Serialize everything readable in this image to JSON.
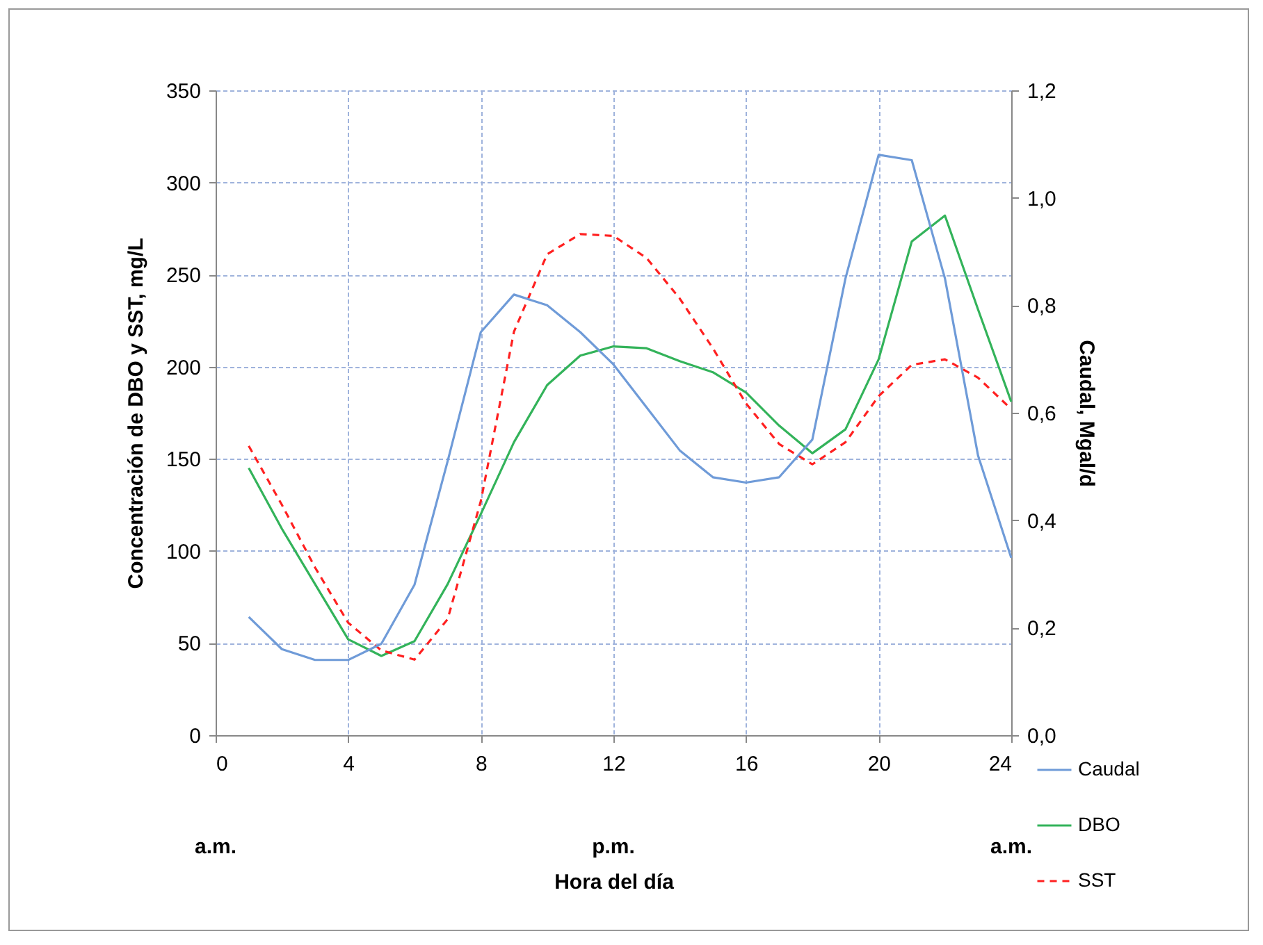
{
  "chart_data": {
    "type": "line",
    "xlabel": "Hora del día",
    "ylabel": "Concentración de DBO y SST, mg/L",
    "y2label": "Caudal, Mgal/d",
    "x": [
      1,
      2,
      3,
      4,
      5,
      6,
      7,
      8,
      9,
      10,
      11,
      12,
      13,
      14,
      15,
      16,
      17,
      18,
      19,
      20,
      21,
      22,
      23,
      24
    ],
    "series": [
      {
        "name": "Caudal",
        "color": "#6f9bd8",
        "axis": "y2",
        "line_style": "solid",
        "values": [
          0.22,
          0.16,
          0.14,
          0.14,
          0.17,
          0.28,
          0.51,
          0.75,
          0.82,
          0.8,
          0.75,
          0.69,
          0.61,
          0.53,
          0.48,
          0.47,
          0.48,
          0.55,
          0.85,
          1.08,
          1.07,
          0.85,
          0.52,
          0.33
        ]
      },
      {
        "name": "DBO",
        "color": "#33b35a",
        "line_style": "solid",
        "values": [
          145,
          112,
          82,
          52,
          43,
          51,
          82,
          120,
          159,
          190,
          206,
          211,
          210,
          203,
          197,
          186,
          168,
          153,
          166,
          204,
          268,
          282,
          231,
          181
        ]
      },
      {
        "name": "SST",
        "color": "#ff2020",
        "line_style": "dashed",
        "values": [
          157,
          125,
          91,
          61,
          46,
          41,
          63,
          127,
          219,
          261,
          272,
          271,
          259,
          237,
          210,
          180,
          158,
          147,
          159,
          184,
          201,
          204,
          194,
          177
        ]
      }
    ],
    "xlim": [
      0,
      24
    ],
    "xticks": [
      0,
      4,
      8,
      12,
      16,
      20,
      24
    ],
    "ylim": [
      0,
      350
    ],
    "yticks": [
      0,
      50,
      100,
      150,
      200,
      250,
      300,
      350
    ],
    "y2lim": [
      0,
      1.2
    ],
    "y2ticks": [
      {
        "value": 0,
        "label": "0,0"
      },
      {
        "value": 0.2,
        "label": "0,2"
      },
      {
        "value": 0.4,
        "label": "0,4"
      },
      {
        "value": 0.6,
        "label": "0,6"
      },
      {
        "value": 0.8,
        "label": "0,8"
      },
      {
        "value": 1,
        "label": "1,0"
      },
      {
        "value": 1.2,
        "label": "1,2"
      }
    ],
    "annotations": [
      "a.m.",
      "p.m.",
      "a.m."
    ],
    "grid": true,
    "legend": "bottom right",
    "marker": "none"
  }
}
